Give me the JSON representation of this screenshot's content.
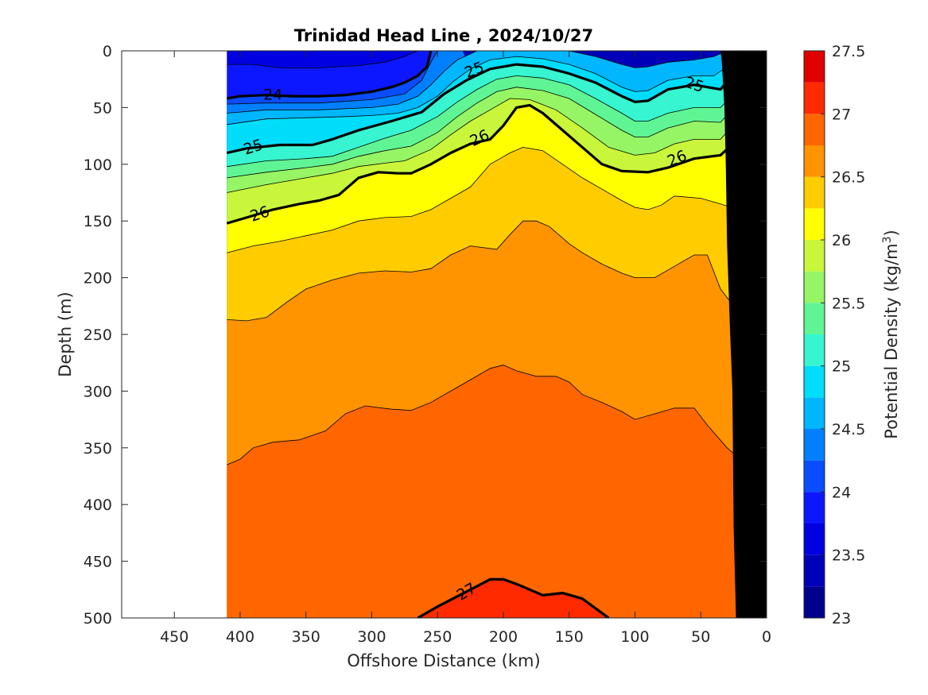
{
  "chart_data": {
    "type": "contour",
    "title": "Trinidad Head Line , 2024/10/27",
    "xlabel": "Offshore Distance (km)",
    "ylabel": "Depth (m)",
    "colorbar_label": "Potential Density (kg/m",
    "colorbar_label_sup": "3",
    "colorbar_label_end": ")",
    "xlim": [
      490,
      0
    ],
    "ylim": [
      0,
      500
    ],
    "x_reversed": true,
    "y_reversed": true,
    "x_ticks": [
      "450",
      "400",
      "350",
      "300",
      "250",
      "200",
      "150",
      "100",
      "50",
      "0"
    ],
    "y_ticks": [
      "0",
      "50",
      "100",
      "150",
      "200",
      "250",
      "300",
      "350",
      "400",
      "450",
      "500"
    ],
    "colorbar_ticks": [
      "27.5",
      "27",
      "26.5",
      "26",
      "25.5",
      "25",
      "24.5",
      "24",
      "23.5",
      "23"
    ],
    "colorbar_range": [
      23,
      27.5
    ],
    "level_step": 0.25,
    "level_colors": [
      "#00008f",
      "#0000b8",
      "#0000e1",
      "#0c17ff",
      "#0a4dff",
      "#0080ff",
      "#00b6ff",
      "#00ddfa",
      "#36f5d0",
      "#60f594",
      "#95f564",
      "#c9f53a",
      "#ffff00",
      "#ffcc00",
      "#ff9300",
      "#ff6600",
      "#ff2a00",
      "#e00000",
      "#a80000"
    ],
    "data_extent_km": [
      410,
      0
    ],
    "bathymetry_color": "#000000",
    "contour_lines": [
      {
        "level": 24,
        "label": "24",
        "points": [
          [
            410,
            42
          ],
          [
            400,
            40
          ],
          [
            380,
            39
          ],
          [
            360,
            40
          ],
          [
            340,
            40
          ],
          [
            320,
            39
          ],
          [
            300,
            36
          ],
          [
            285,
            32
          ],
          [
            275,
            28
          ],
          [
            265,
            22
          ],
          [
            258,
            14
          ],
          [
            255,
            0
          ]
        ]
      },
      {
        "level": 25,
        "label": "25",
        "points": [
          [
            410,
            90
          ],
          [
            395,
            86
          ],
          [
            370,
            83
          ],
          [
            345,
            83
          ],
          [
            330,
            78
          ],
          [
            310,
            70
          ],
          [
            285,
            62
          ],
          [
            262,
            54
          ],
          [
            245,
            38
          ],
          [
            228,
            26
          ],
          [
            210,
            16
          ],
          [
            190,
            12
          ],
          [
            170,
            14
          ],
          [
            150,
            20
          ],
          [
            130,
            28
          ],
          [
            110,
            40
          ],
          [
            100,
            45
          ],
          [
            90,
            44
          ],
          [
            75,
            34
          ],
          [
            55,
            30
          ],
          [
            35,
            34
          ],
          [
            25,
            20
          ],
          [
            18,
            0
          ]
        ]
      },
      {
        "level": 26,
        "label": "26",
        "points": [
          [
            410,
            152
          ],
          [
            395,
            147
          ],
          [
            375,
            140
          ],
          [
            355,
            135
          ],
          [
            340,
            132
          ],
          [
            325,
            127
          ],
          [
            310,
            112
          ],
          [
            295,
            107
          ],
          [
            280,
            108
          ],
          [
            270,
            108
          ],
          [
            255,
            100
          ],
          [
            240,
            90
          ],
          [
            225,
            82
          ],
          [
            210,
            78
          ],
          [
            200,
            66
          ],
          [
            190,
            50
          ],
          [
            180,
            48
          ],
          [
            170,
            55
          ],
          [
            155,
            70
          ],
          [
            140,
            85
          ],
          [
            125,
            100
          ],
          [
            110,
            106
          ],
          [
            90,
            107
          ],
          [
            75,
            103
          ],
          [
            55,
            95
          ],
          [
            35,
            92
          ],
          [
            22,
            78
          ],
          [
            10,
            50
          ]
        ]
      },
      {
        "level": 27,
        "label": "27",
        "points": [
          [
            265,
            500
          ],
          [
            250,
            490
          ],
          [
            225,
            475
          ],
          [
            210,
            466
          ],
          [
            200,
            466
          ],
          [
            190,
            470
          ],
          [
            170,
            480
          ],
          [
            155,
            478
          ],
          [
            140,
            483
          ],
          [
            120,
            500
          ]
        ]
      }
    ],
    "contour_labels": [
      {
        "text": "24",
        "x": 375,
        "y": 39,
        "angle": 0
      },
      {
        "text": "25",
        "x": 390,
        "y": 85,
        "angle": -18
      },
      {
        "text": "25",
        "x": 222,
        "y": 17,
        "angle": -22
      },
      {
        "text": "25",
        "x": 55,
        "y": 30,
        "angle": 18
      },
      {
        "text": "26",
        "x": 385,
        "y": 144,
        "angle": -18
      },
      {
        "text": "26",
        "x": 218,
        "y": 77,
        "angle": -25
      },
      {
        "text": "26",
        "x": 68,
        "y": 95,
        "angle": -22
      },
      {
        "text": "27",
        "x": 228,
        "y": 477,
        "angle": -30
      }
    ]
  }
}
